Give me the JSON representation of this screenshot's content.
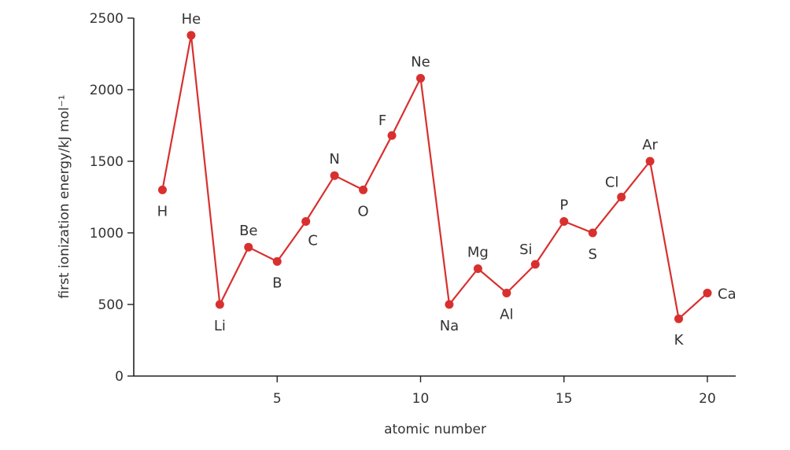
{
  "chart_data": {
    "type": "line",
    "xlabel": "atomic number",
    "ylabel": "first ionization energy/kJ mol⁻¹",
    "xlim": [
      0,
      21
    ],
    "ylim": [
      0,
      2500
    ],
    "x_ticks": [
      5,
      10,
      15,
      20
    ],
    "y_ticks": [
      0,
      500,
      1000,
      1500,
      2000,
      2500
    ],
    "grid": false,
    "series": [
      {
        "color": "#d8302f",
        "points": [
          {
            "x": 1,
            "y": 1300,
            "label": "H",
            "label_pos": "below"
          },
          {
            "x": 2,
            "y": 2380,
            "label": "He",
            "label_pos": "above"
          },
          {
            "x": 3,
            "y": 500,
            "label": "Li",
            "label_pos": "below"
          },
          {
            "x": 4,
            "y": 900,
            "label": "Be",
            "label_pos": "above"
          },
          {
            "x": 5,
            "y": 800,
            "label": "B",
            "label_pos": "below"
          },
          {
            "x": 6,
            "y": 1080,
            "label": "C",
            "label_pos": "below-right"
          },
          {
            "x": 7,
            "y": 1400,
            "label": "N",
            "label_pos": "above"
          },
          {
            "x": 8,
            "y": 1300,
            "label": "O",
            "label_pos": "below"
          },
          {
            "x": 9,
            "y": 1680,
            "label": "F",
            "label_pos": "above-left"
          },
          {
            "x": 10,
            "y": 2080,
            "label": "Ne",
            "label_pos": "above"
          },
          {
            "x": 11,
            "y": 500,
            "label": "Na",
            "label_pos": "below"
          },
          {
            "x": 12,
            "y": 750,
            "label": "Mg",
            "label_pos": "above"
          },
          {
            "x": 13,
            "y": 580,
            "label": "Al",
            "label_pos": "below"
          },
          {
            "x": 14,
            "y": 780,
            "label": "Si",
            "label_pos": "above-left"
          },
          {
            "x": 15,
            "y": 1080,
            "label": "P",
            "label_pos": "above"
          },
          {
            "x": 16,
            "y": 1000,
            "label": "S",
            "label_pos": "below"
          },
          {
            "x": 17,
            "y": 1250,
            "label": "Cl",
            "label_pos": "above-left"
          },
          {
            "x": 18,
            "y": 1500,
            "label": "Ar",
            "label_pos": "above"
          },
          {
            "x": 19,
            "y": 400,
            "label": "K",
            "label_pos": "below"
          },
          {
            "x": 20,
            "y": 580,
            "label": "Ca",
            "label_pos": "right"
          }
        ]
      }
    ]
  }
}
